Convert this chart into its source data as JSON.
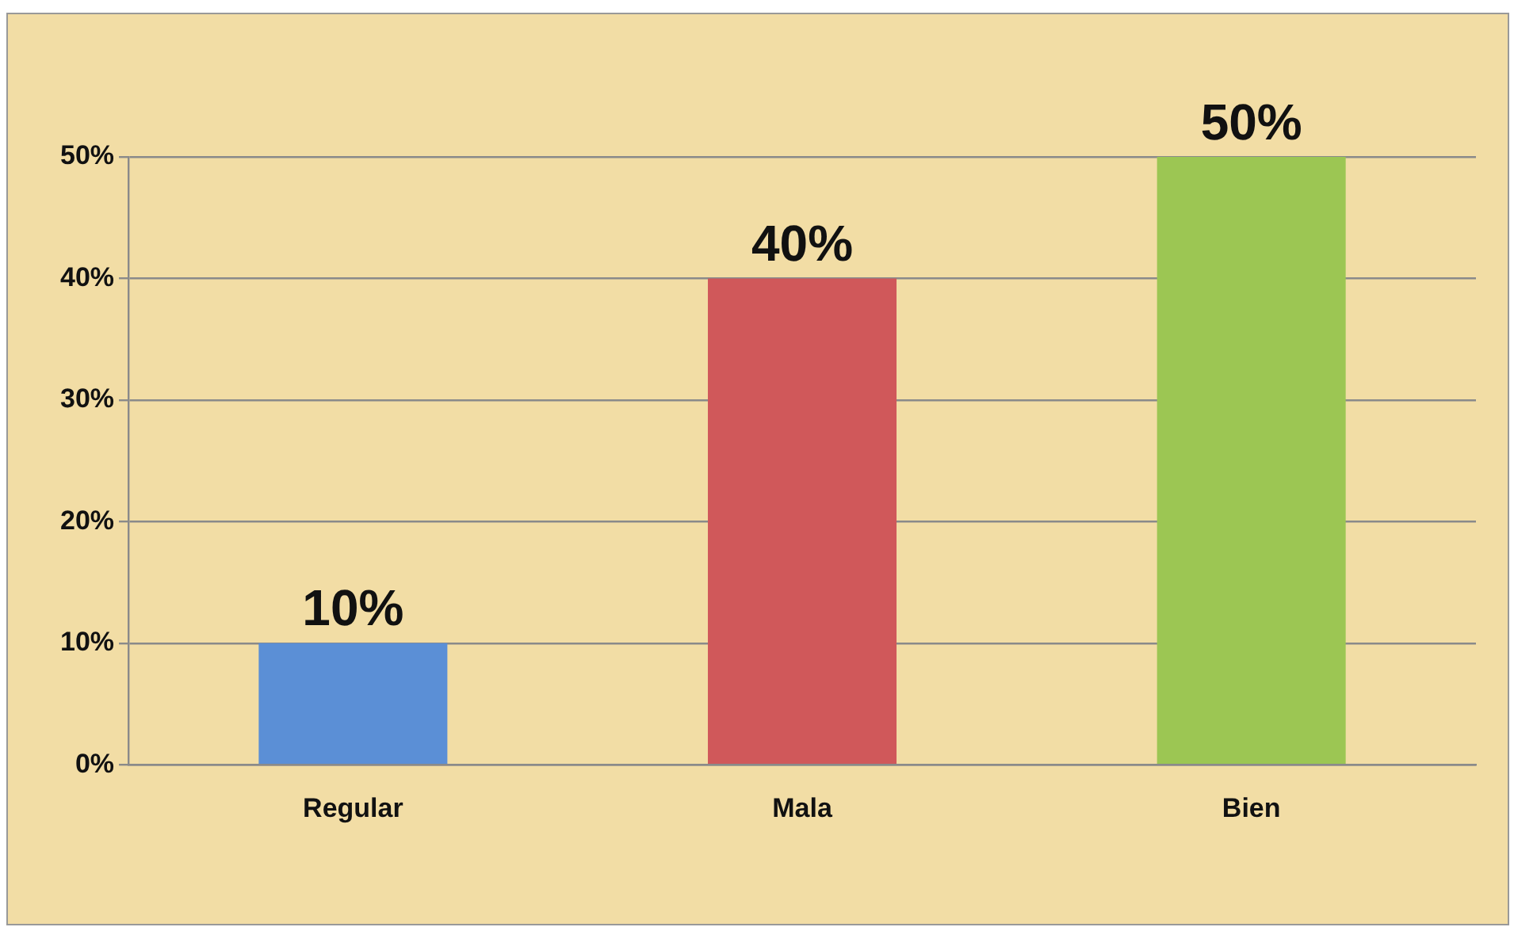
{
  "chart_data": {
    "type": "bar",
    "categories": [
      "Regular",
      "Mala",
      "Bien"
    ],
    "values": [
      10,
      40,
      50
    ],
    "colors": [
      "#5b8fd6",
      "#d0585a",
      "#9cc653"
    ],
    "value_labels": [
      "10%",
      "40%",
      "50%"
    ],
    "ylim": [
      0,
      50
    ],
    "yticks": [
      {
        "value": 0,
        "label": "0%"
      },
      {
        "value": 10,
        "label": "10%"
      },
      {
        "value": 20,
        "label": "20%"
      },
      {
        "value": 30,
        "label": "30%"
      },
      {
        "value": 40,
        "label": "40%"
      },
      {
        "value": 50,
        "label": "50%"
      }
    ],
    "grid": "y",
    "legend": false
  }
}
